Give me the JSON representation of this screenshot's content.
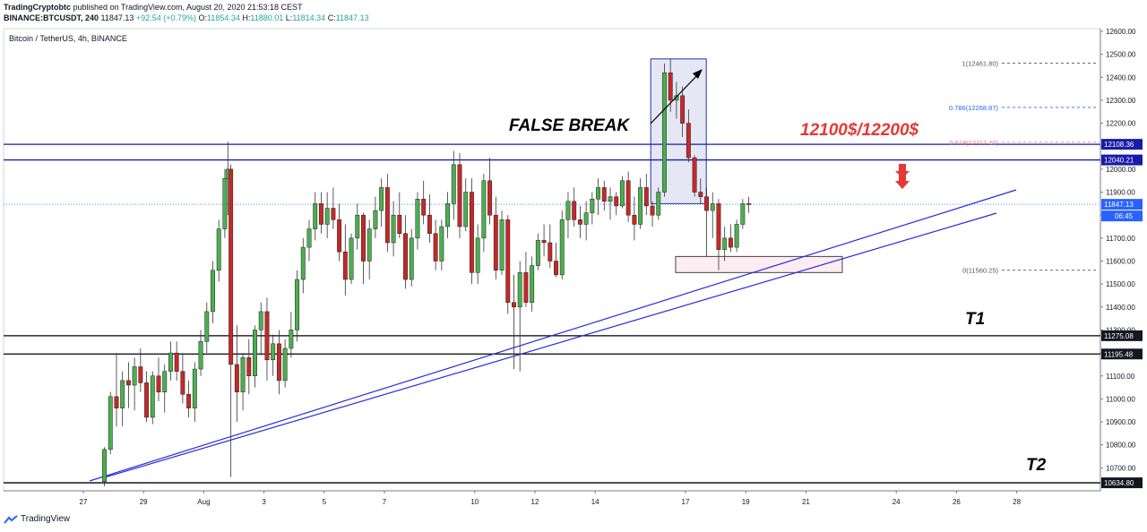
{
  "header": {
    "publisher": "TradingCryptobtc",
    "published_text": "published on TradingView.com, August 20, 2020 21:53:18 CEST",
    "symbol": "BINANCE:BTCUSDT, 240",
    "last": "11847.13",
    "change": "+92.54 (+0.79%)",
    "o_label": "O:",
    "o": "11854.34",
    "h_label": "H:",
    "h": "11880.01",
    "l_label": "L:",
    "l": "11814.34",
    "c_label": "C:",
    "c": "11847.13"
  },
  "footer": {
    "brand": "TradingView"
  },
  "colors": {
    "up": "#4caf50",
    "down": "#c62828",
    "level_blue": "#1a1aa8",
    "trend": "#2a2ae0",
    "fib_red": "#e57373",
    "fib_blue": "#2962ff",
    "annotation_red": "#e53935"
  },
  "chart_data": {
    "type": "candlestick",
    "title": "Bitcoin / TetherUS, 4h, BINANCE",
    "ylim": [
      10620,
      12620
    ],
    "y_ticks": [
      10700,
      10800,
      10900,
      11000,
      11100,
      11200,
      11300,
      11400,
      11500,
      11600,
      11700,
      11800,
      11900,
      12000,
      12100,
      12200,
      12300,
      12400,
      12500,
      12600
    ],
    "y_tick_labels": [
      "10700.00",
      "10800.00",
      "10900.00",
      "11000.00",
      "11100.00",
      "11200.00",
      "11300.00",
      "11400.00",
      "11500.00",
      "11600.00",
      "11700.00",
      "11800.00",
      "11900.00",
      "12000.00",
      "12100.00",
      "12200.00",
      "12300.00",
      "12400.00",
      "12500.00",
      "12600.00"
    ],
    "x_range": [
      26.9,
      28.9
    ],
    "x_ticks": [
      {
        "label": "27",
        "x": 27
      },
      {
        "label": "29",
        "x": 29
      },
      {
        "label": "Aug",
        "x": 31
      },
      {
        "label": "3",
        "x": 33
      },
      {
        "label": "5",
        "x": 35
      },
      {
        "label": "7",
        "x": 37
      },
      {
        "label": "10",
        "x": 40
      },
      {
        "label": "12",
        "x": 42
      },
      {
        "label": "14",
        "x": 44
      },
      {
        "label": "17",
        "x": 47
      },
      {
        "label": "19",
        "x": 49
      },
      {
        "label": "21",
        "x": 51
      },
      {
        "label": "24",
        "x": 54
      },
      {
        "label": "26",
        "x": 56
      },
      {
        "label": "28",
        "x": 58
      }
    ],
    "candles": [
      [
        27.7,
        10640,
        10790,
        10620,
        10780
      ],
      [
        27.9,
        10780,
        11030,
        10760,
        11010
      ],
      [
        28.1,
        11010,
        11200,
        10880,
        10960
      ],
      [
        28.3,
        10960,
        11120,
        10880,
        11080
      ],
      [
        28.5,
        11080,
        11160,
        10960,
        11060
      ],
      [
        28.7,
        11060,
        11180,
        10950,
        11140
      ],
      [
        28.9,
        11140,
        11220,
        11030,
        11070
      ],
      [
        29.1,
        11070,
        11120,
        10900,
        10920
      ],
      [
        29.3,
        10920,
        11120,
        10890,
        11100
      ],
      [
        29.5,
        11100,
        11180,
        10990,
        11030
      ],
      [
        29.7,
        11030,
        11150,
        10940,
        11120
      ],
      [
        29.9,
        11120,
        11250,
        11080,
        11200
      ],
      [
        30.1,
        11200,
        11250,
        11080,
        11120
      ],
      [
        30.3,
        11120,
        11200,
        10980,
        11020
      ],
      [
        30.5,
        11020,
        11080,
        10920,
        10960
      ],
      [
        30.7,
        10960,
        11160,
        10900,
        11130
      ],
      [
        30.9,
        11130,
        11300,
        11100,
        11250
      ],
      [
        31.1,
        11250,
        11420,
        11200,
        11380
      ],
      [
        31.3,
        11380,
        11600,
        11330,
        11560
      ],
      [
        31.5,
        11560,
        11780,
        11510,
        11740
      ],
      [
        31.7,
        11740,
        12000,
        11700,
        11960
      ],
      [
        31.8,
        11960,
        12120,
        11800,
        12000
      ],
      [
        31.9,
        12000,
        12020,
        10660,
        11150
      ],
      [
        32.1,
        11150,
        11320,
        10900,
        11030
      ],
      [
        32.3,
        11030,
        11200,
        10950,
        11180
      ],
      [
        32.5,
        11180,
        11260,
        11020,
        11100
      ],
      [
        32.7,
        11100,
        11320,
        11050,
        11300
      ],
      [
        32.9,
        11300,
        11420,
        11190,
        11380
      ],
      [
        33.1,
        11380,
        11440,
        11080,
        11170
      ],
      [
        33.3,
        11170,
        11280,
        11100,
        11240
      ],
      [
        33.5,
        11240,
        11300,
        11020,
        11080
      ],
      [
        33.7,
        11080,
        11260,
        11050,
        11220
      ],
      [
        33.9,
        11220,
        11380,
        11180,
        11300
      ],
      [
        34.1,
        11300,
        11560,
        11250,
        11520
      ],
      [
        34.3,
        11520,
        11700,
        11460,
        11660
      ],
      [
        34.5,
        11660,
        11780,
        11600,
        11740
      ],
      [
        34.7,
        11740,
        11900,
        11690,
        11850
      ],
      [
        34.9,
        11850,
        11900,
        11720,
        11760
      ],
      [
        35.1,
        11760,
        11900,
        11700,
        11830
      ],
      [
        35.3,
        11830,
        11920,
        11740,
        11780
      ],
      [
        35.5,
        11780,
        11850,
        11600,
        11640
      ],
      [
        35.7,
        11640,
        11760,
        11450,
        11520
      ],
      [
        35.9,
        11520,
        11720,
        11500,
        11700
      ],
      [
        36.1,
        11700,
        11850,
        11650,
        11800
      ],
      [
        36.3,
        11800,
        11810,
        11500,
        11600
      ],
      [
        36.5,
        11600,
        11780,
        11520,
        11740
      ],
      [
        36.7,
        11740,
        11880,
        11700,
        11820
      ],
      [
        36.9,
        11820,
        11960,
        11750,
        11920
      ],
      [
        37.1,
        11920,
        11980,
        11640,
        11680
      ],
      [
        37.3,
        11680,
        11860,
        11620,
        11800
      ],
      [
        37.5,
        11800,
        11900,
        11700,
        11720
      ],
      [
        37.7,
        11720,
        11800,
        11480,
        11520
      ],
      [
        37.9,
        11520,
        11740,
        11490,
        11700
      ],
      [
        38.1,
        11700,
        11900,
        11650,
        11870
      ],
      [
        38.3,
        11870,
        11950,
        11760,
        11800
      ],
      [
        38.5,
        11800,
        11890,
        11680,
        11720
      ],
      [
        38.7,
        11720,
        11780,
        11560,
        11600
      ],
      [
        38.9,
        11600,
        11780,
        11560,
        11750
      ],
      [
        39.1,
        11750,
        11900,
        11700,
        11850
      ],
      [
        39.3,
        11850,
        12080,
        11780,
        12020
      ],
      [
        39.5,
        12020,
        12070,
        11700,
        11750
      ],
      [
        39.7,
        11750,
        11960,
        11730,
        11900
      ],
      [
        39.9,
        11900,
        11960,
        11500,
        11550
      ],
      [
        40.1,
        11550,
        11760,
        11500,
        11700
      ],
      [
        40.3,
        11700,
        11980,
        11640,
        11950
      ],
      [
        40.5,
        11950,
        12050,
        11760,
        11800
      ],
      [
        40.7,
        11800,
        11880,
        11520,
        11560
      ],
      [
        40.9,
        11560,
        11820,
        11540,
        11780
      ],
      [
        41.1,
        11780,
        11800,
        11370,
        11420
      ],
      [
        41.3,
        11420,
        11540,
        11130,
        11400
      ],
      [
        41.5,
        11400,
        11600,
        11120,
        11550
      ],
      [
        41.7,
        11550,
        11640,
        11400,
        11420
      ],
      [
        41.9,
        11420,
        11620,
        11380,
        11580
      ],
      [
        42.1,
        11580,
        11720,
        11560,
        11690
      ],
      [
        42.3,
        11690,
        11760,
        11620,
        11680
      ],
      [
        42.5,
        11680,
        11760,
        11570,
        11600
      ],
      [
        42.7,
        11600,
        11680,
        11530,
        11540
      ],
      [
        42.9,
        11540,
        11820,
        11520,
        11780
      ],
      [
        43.1,
        11780,
        11900,
        11700,
        11860
      ],
      [
        43.3,
        11860,
        11920,
        11750,
        11780
      ],
      [
        43.5,
        11780,
        11840,
        11700,
        11760
      ],
      [
        43.7,
        11760,
        11860,
        11690,
        11810
      ],
      [
        43.9,
        11810,
        11900,
        11760,
        11870
      ],
      [
        44.1,
        11870,
        11960,
        11800,
        11920
      ],
      [
        44.3,
        11920,
        11950,
        11820,
        11860
      ],
      [
        44.5,
        11860,
        11920,
        11780,
        11880
      ],
      [
        44.7,
        11880,
        11900,
        11800,
        11840
      ],
      [
        44.9,
        11840,
        11970,
        11830,
        11950
      ],
      [
        45.1,
        11950,
        11990,
        11770,
        11800
      ],
      [
        45.3,
        11800,
        11880,
        11690,
        11760
      ],
      [
        45.5,
        11760,
        11960,
        11740,
        11920
      ],
      [
        45.7,
        11920,
        11980,
        11800,
        11840
      ],
      [
        45.9,
        11840,
        11860,
        11750,
        11800
      ],
      [
        46.1,
        11800,
        11920,
        11780,
        11900
      ],
      [
        46.3,
        11900,
        12460,
        11880,
        12420
      ],
      [
        46.5,
        12420,
        12480,
        12250,
        12300
      ],
      [
        46.7,
        12300,
        12380,
        12220,
        12320
      ],
      [
        46.9,
        12320,
        12360,
        12140,
        12200
      ],
      [
        47.1,
        12200,
        12260,
        12030,
        12050
      ],
      [
        47.3,
        12050,
        12060,
        11880,
        11900
      ],
      [
        47.5,
        11900,
        11960,
        11850,
        11880
      ],
      [
        47.7,
        11880,
        11920,
        11620,
        11820
      ],
      [
        47.9,
        11820,
        11900,
        11700,
        11850
      ],
      [
        48.1,
        11850,
        11870,
        11560,
        11650
      ],
      [
        48.3,
        11650,
        11750,
        11600,
        11700
      ],
      [
        48.5,
        11700,
        11760,
        11640,
        11660
      ],
      [
        48.7,
        11660,
        11780,
        11640,
        11760
      ],
      [
        48.9,
        11760,
        11870,
        11740,
        11850
      ],
      [
        49.1,
        11850,
        11880,
        11810,
        11847
      ]
    ],
    "levels": [
      {
        "price": 12108.36,
        "label": "12108.36",
        "style": "blue"
      },
      {
        "price": 12040.21,
        "label": "12040.21",
        "style": "blue"
      },
      {
        "price": 11847.13,
        "label": "11847.13",
        "style": "dotted"
      },
      {
        "price": 11275.08,
        "label": "11275.08",
        "style": "black"
      },
      {
        "price": 11195.48,
        "label": "11195.48",
        "style": "black"
      },
      {
        "price": 10634.8,
        "label": "10634.80",
        "style": "black"
      }
    ],
    "countdown": "06:45",
    "fib": [
      {
        "label": "1(12461.80)",
        "price": 12461.8,
        "color": "#555555"
      },
      {
        "label": "0.786(12268.87)",
        "price": 12268.87,
        "color": "#2962ff"
      },
      {
        "label": "0.618(12117.40)",
        "price": 12117.4,
        "color": "#e57373"
      },
      {
        "label": "0(11560.25)",
        "price": 11560.25,
        "color": "#555555"
      }
    ],
    "trendlines": [
      {
        "x1": 27.2,
        "y1": 10660,
        "x2": 48.9,
        "y2": 11920
      },
      {
        "x1": 27.8,
        "y1": 10720,
        "x2": 48.2,
        "y2": 11810
      }
    ],
    "annotations": {
      "false_break": "FALSE BREAK",
      "target": "12100$/12200$",
      "t1": "T1",
      "t2": "T2"
    }
  }
}
